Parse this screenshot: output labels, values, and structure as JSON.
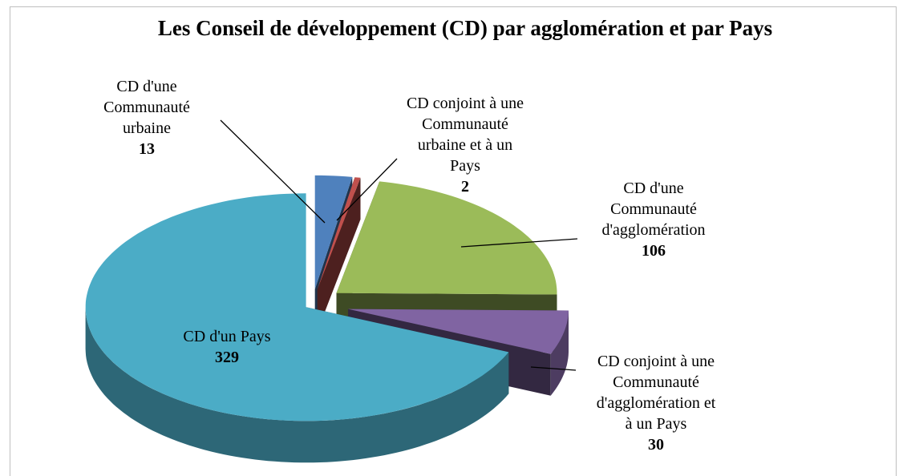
{
  "chart_data": {
    "type": "pie",
    "title": "Les Conseil de développement (CD) par agglomération et par Pays",
    "categories": [
      "CD d'une\nCommunauté\nurbaine",
      "CD conjoint à une\nCommunauté\nurbaine et à un\nPays",
      "CD d'une\nCommunauté\nd'agglomération",
      "CD conjoint à une\nCommunauté\nd'agglomération et\nà un Pays",
      "CD d'un Pays"
    ],
    "values": [
      13,
      2,
      106,
      30,
      329
    ],
    "colors": [
      "#4f81bd",
      "#c0504d",
      "#9bbb59",
      "#8064a2",
      "#4bacc6"
    ]
  }
}
